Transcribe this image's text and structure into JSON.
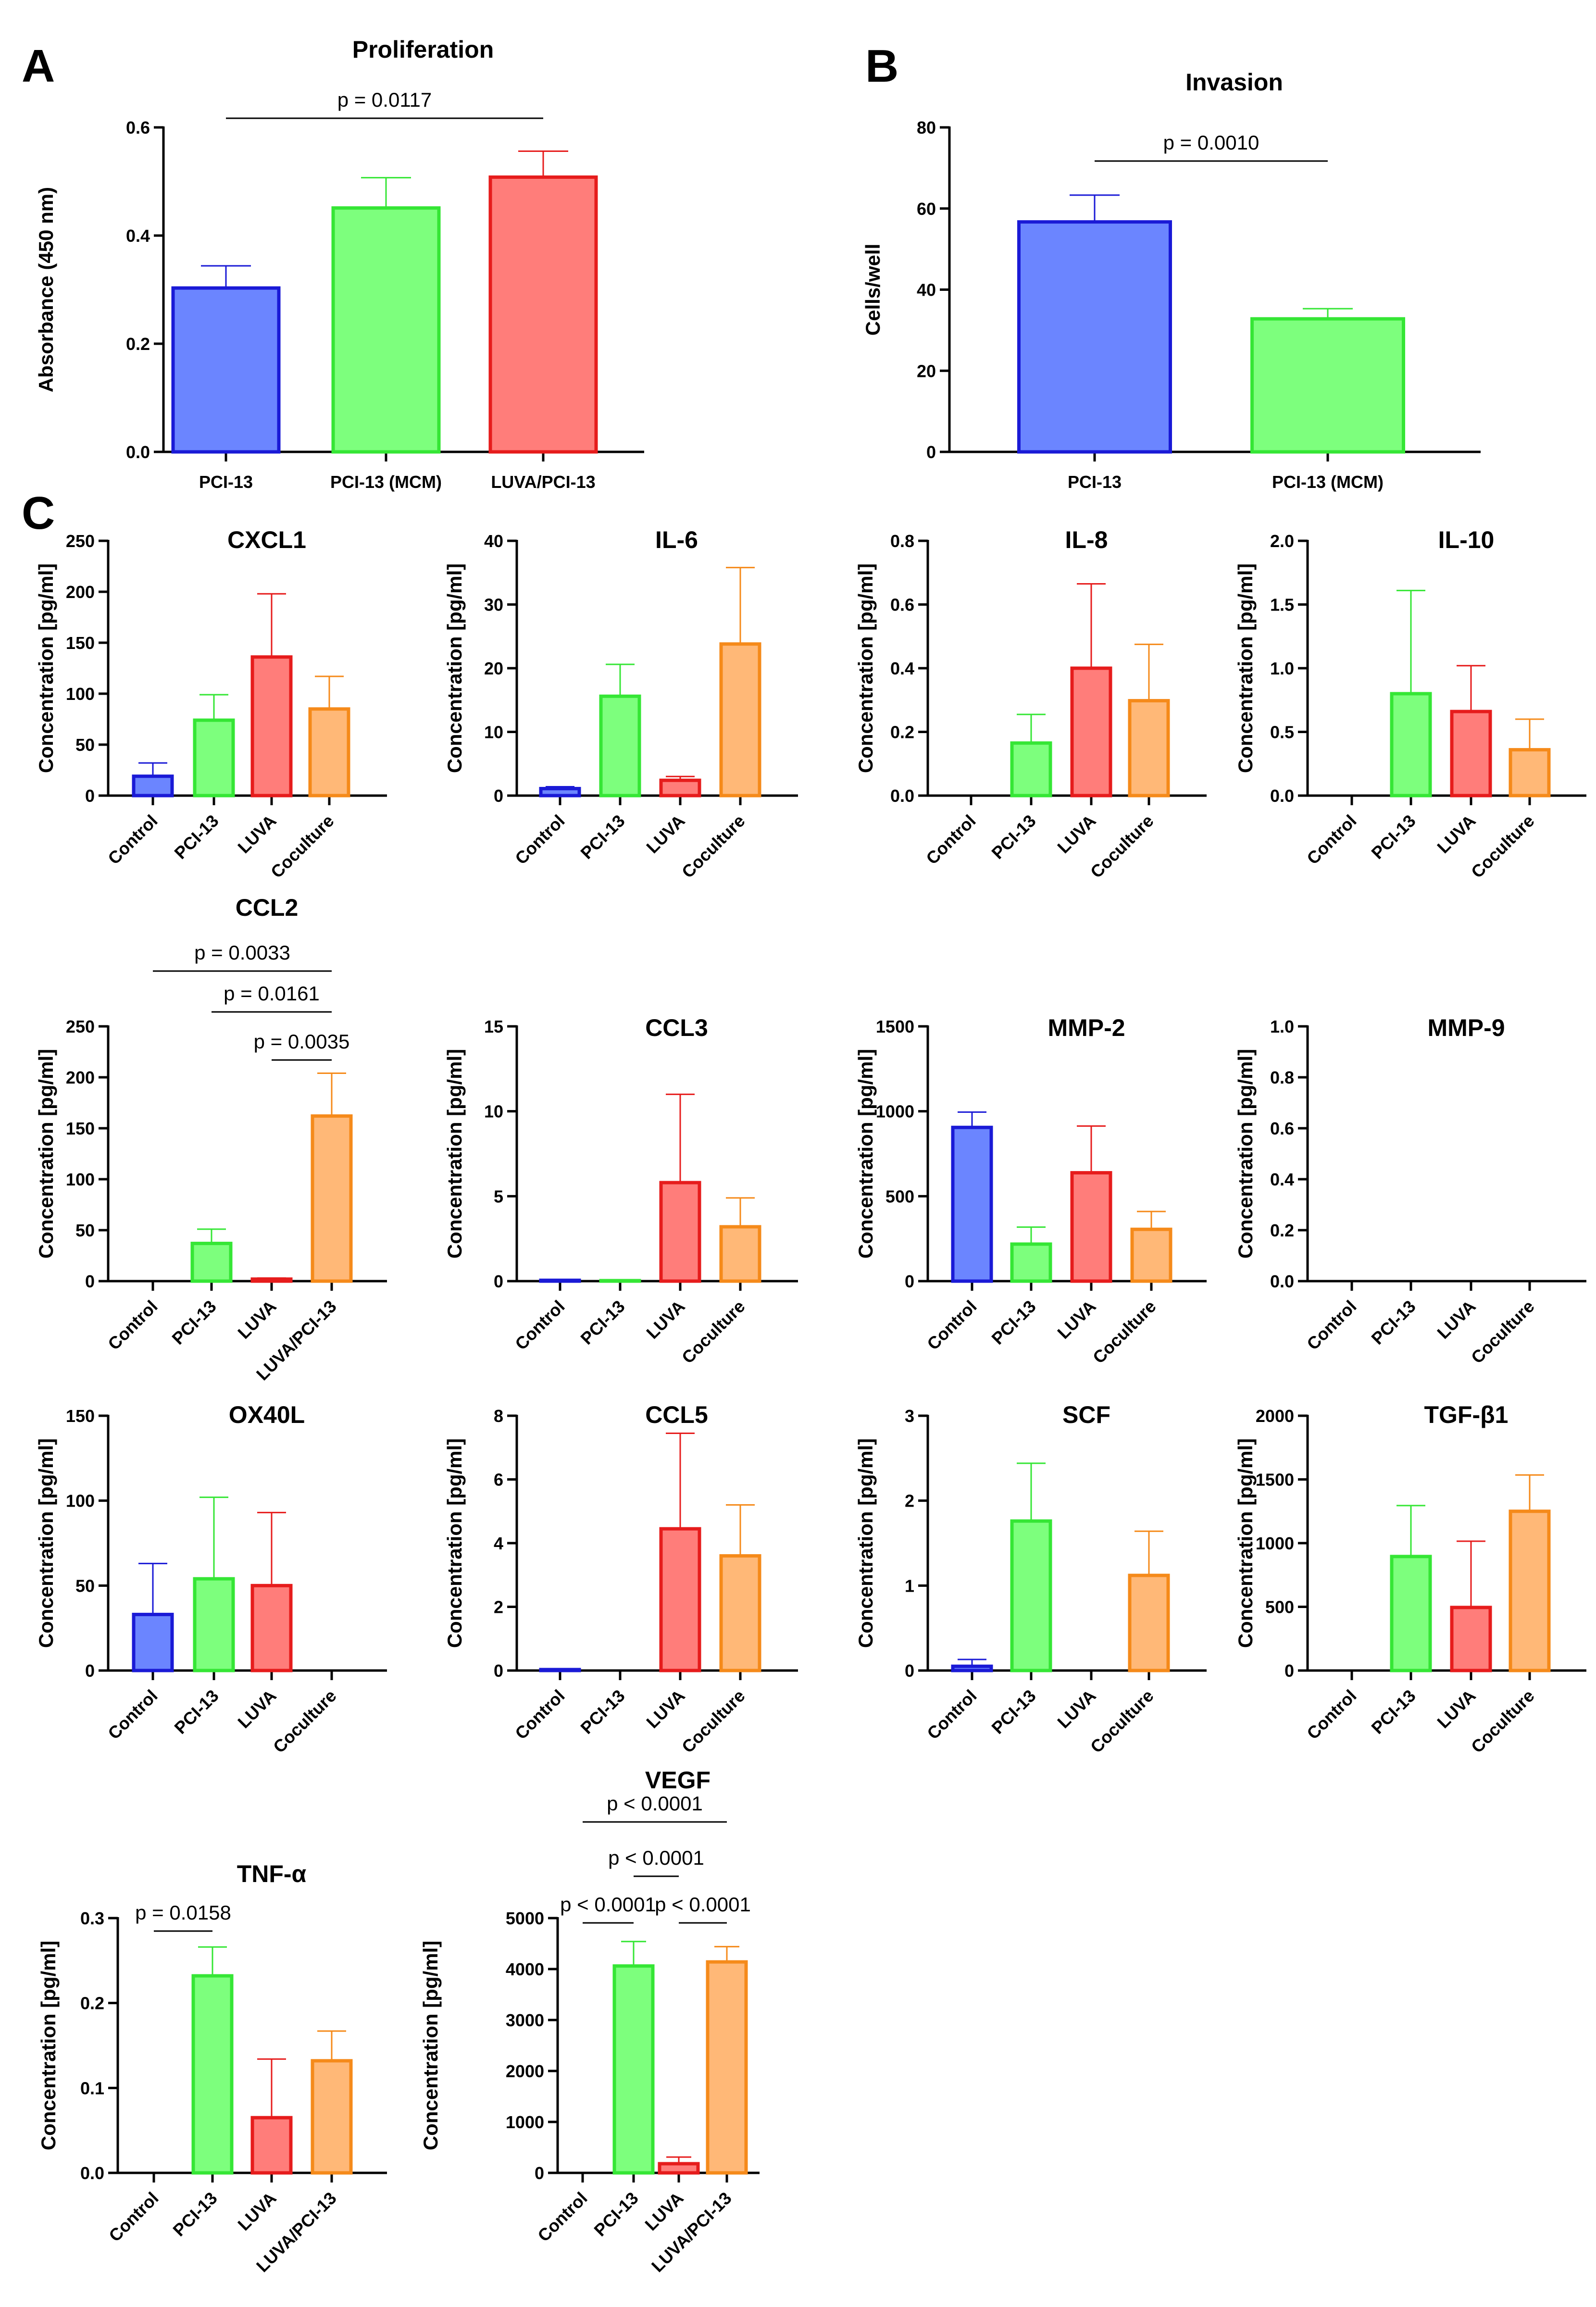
{
  "colors": {
    "blue_fill": "#6b85ff",
    "blue_edge": "#1a1ad6",
    "green_fill": "#7dff7d",
    "green_edge": "#35e635",
    "red_fill": "#ff7d7a",
    "red_edge": "#e61c1c",
    "orange_fill": "#ffb877",
    "orange_edge": "#f58a1a"
  },
  "panel_labels": [
    "A",
    "B",
    "C"
  ],
  "chart_data": [
    {
      "id": "proliferation",
      "type": "bar",
      "title": "Proliferation",
      "xlabel": "",
      "ylabel": "Absorbance (450 nm)",
      "ylim": [
        0,
        0.6
      ],
      "yticks": [
        "0.0",
        "0.2",
        "0.4",
        "0.6"
      ],
      "categories": [
        "PCI-13",
        "PCI-13 (MCM)",
        "LUVA/PCI-13"
      ],
      "values": [
        0.303,
        0.451,
        0.508
      ],
      "errors": [
        0.041,
        0.056,
        0.048
      ],
      "colors": [
        "blue",
        "green",
        "red"
      ],
      "rotate_labels": false,
      "annotations": [
        {
          "from": 0,
          "to": 2,
          "text": "p = 0.0117"
        }
      ]
    },
    {
      "id": "invasion",
      "type": "bar",
      "title": "Invasion",
      "xlabel": "",
      "ylabel": "Cells/well",
      "ylim": [
        0,
        80
      ],
      "yticks": [
        "0",
        "20",
        "40",
        "60",
        "80"
      ],
      "categories": [
        "PCI-13",
        "PCI-13 (MCM)"
      ],
      "values": [
        56.7,
        32.8
      ],
      "errors": [
        6.6,
        2.5
      ],
      "colors": [
        "blue",
        "green"
      ],
      "rotate_labels": false,
      "annotations": [
        {
          "from": 0,
          "to": 1,
          "text": "p = 0.0010"
        }
      ]
    },
    {
      "id": "cxcl1",
      "type": "bar",
      "title": "CXCL1",
      "xlabel": "",
      "ylabel": "Concentration [pg/ml]",
      "ylim": [
        0,
        250
      ],
      "yticks": [
        "0",
        "50",
        "100",
        "150",
        "200",
        "250"
      ],
      "categories": [
        "Control",
        "PCI-13",
        "LUVA",
        "Coculture"
      ],
      "values": [
        19,
        74,
        136,
        85
      ],
      "errors": [
        13,
        25,
        62,
        32
      ],
      "colors": [
        "blue",
        "green",
        "red",
        "orange"
      ],
      "rotate_labels": true,
      "annotations": []
    },
    {
      "id": "il6",
      "type": "bar",
      "title": "IL-6",
      "xlabel": "",
      "ylabel": "Concentration [pg/ml]",
      "ylim": [
        0,
        40
      ],
      "yticks": [
        "0",
        "10",
        "20",
        "30",
        "40"
      ],
      "categories": [
        "Control",
        "PCI-13",
        "LUVA",
        "Coculture"
      ],
      "values": [
        1.1,
        15.6,
        2.4,
        23.8
      ],
      "errors": [
        0.3,
        5.0,
        0.6,
        12.0
      ],
      "colors": [
        "blue",
        "green",
        "red",
        "orange"
      ],
      "rotate_labels": true,
      "annotations": []
    },
    {
      "id": "il8",
      "type": "bar",
      "title": "IL-8",
      "xlabel": "",
      "ylabel": "Concentration [pg/ml]",
      "ylim": [
        0,
        0.8
      ],
      "yticks": [
        "0.0",
        "0.2",
        "0.4",
        "0.6",
        "0.8"
      ],
      "categories": [
        "Control",
        "PCI-13",
        "LUVA",
        "Coculture"
      ],
      "values": [
        0,
        0.165,
        0.4,
        0.298
      ],
      "errors": [
        0,
        0.09,
        0.265,
        0.177
      ],
      "colors": [
        "blue",
        "green",
        "red",
        "orange"
      ],
      "rotate_labels": true,
      "annotations": []
    },
    {
      "id": "il10",
      "type": "bar",
      "title": "IL-10",
      "xlabel": "",
      "ylabel": "Concentration [pg/ml]",
      "ylim": [
        0,
        2.0
      ],
      "yticks": [
        "0.0",
        "0.5",
        "1.0",
        "1.5",
        "2.0"
      ],
      "categories": [
        "Control",
        "PCI-13",
        "LUVA",
        "Coculture"
      ],
      "values": [
        0,
        0.8,
        0.66,
        0.36
      ],
      "errors": [
        0,
        0.81,
        0.36,
        0.24
      ],
      "colors": [
        "blue",
        "green",
        "red",
        "orange"
      ],
      "rotate_labels": true,
      "annotations": []
    },
    {
      "id": "ccl2",
      "type": "bar",
      "title": "CCL2",
      "xlabel": "",
      "ylabel": "Concentration [pg/ml]",
      "ylim": [
        0,
        250
      ],
      "yticks": [
        "0",
        "50",
        "100",
        "150",
        "200",
        "250"
      ],
      "categories": [
        "Control",
        "PCI-13",
        "LUVA",
        "LUVA/PCI-13"
      ],
      "values": [
        0,
        37,
        2,
        162
      ],
      "errors": [
        0,
        14,
        1,
        42
      ],
      "colors": [
        "blue",
        "green",
        "red",
        "orange"
      ],
      "rotate_labels": true,
      "annotations": [
        {
          "from": 0,
          "to": 3,
          "text": "p = 0.0033"
        },
        {
          "from": 1,
          "to": 3,
          "text": "p = 0.0161"
        },
        {
          "from": 2,
          "to": 3,
          "text": "p = 0.0035"
        }
      ]
    },
    {
      "id": "ccl3",
      "type": "bar",
      "title": "CCL3",
      "xlabel": "",
      "ylabel": "Concentration [pg/ml]",
      "ylim": [
        0,
        15
      ],
      "yticks": [
        "0",
        "5",
        "10",
        "15"
      ],
      "categories": [
        "Control",
        "PCI-13",
        "LUVA",
        "Coculture"
      ],
      "values": [
        0.05,
        0.03,
        5.8,
        3.2
      ],
      "errors": [
        0.02,
        0.02,
        5.2,
        1.7
      ],
      "colors": [
        "blue",
        "green",
        "red",
        "orange"
      ],
      "rotate_labels": true,
      "annotations": []
    },
    {
      "id": "mmp2",
      "type": "bar",
      "title": "MMP-2",
      "xlabel": "",
      "ylabel": "Concentration [pg/ml]",
      "ylim": [
        0,
        1500
      ],
      "yticks": [
        "0",
        "500",
        "1000",
        "1500"
      ],
      "categories": [
        "Control",
        "PCI-13",
        "LUVA",
        "Coculture"
      ],
      "values": [
        905,
        218,
        638,
        305
      ],
      "errors": [
        90,
        100,
        275,
        105
      ],
      "colors": [
        "blue",
        "green",
        "red",
        "orange"
      ],
      "rotate_labels": true,
      "annotations": []
    },
    {
      "id": "mmp9",
      "type": "bar",
      "title": "MMP-9",
      "xlabel": "",
      "ylabel": "Concentration [pg/ml]",
      "ylim": [
        0,
        1.0
      ],
      "yticks": [
        "0.0",
        "0.2",
        "0.4",
        "0.6",
        "0.8",
        "1.0"
      ],
      "categories": [
        "Control",
        "PCI-13",
        "LUVA",
        "Coculture"
      ],
      "values": [
        0,
        0,
        0,
        0
      ],
      "errors": [
        0,
        0,
        0,
        0
      ],
      "colors": [
        "blue",
        "green",
        "red",
        "orange"
      ],
      "rotate_labels": true,
      "annotations": []
    },
    {
      "id": "ox40l",
      "type": "bar",
      "title": "OX40L",
      "xlabel": "",
      "ylabel": "Concentration [pg/ml]",
      "ylim": [
        0,
        150
      ],
      "yticks": [
        "0",
        "50",
        "100",
        "150"
      ],
      "categories": [
        "Control",
        "PCI-13",
        "LUVA",
        "Coculture"
      ],
      "values": [
        33,
        54,
        50,
        0
      ],
      "errors": [
        30,
        48,
        43,
        0
      ],
      "colors": [
        "blue",
        "green",
        "red",
        "orange"
      ],
      "rotate_labels": true,
      "annotations": []
    },
    {
      "id": "ccl5",
      "type": "bar",
      "title": "CCL5",
      "xlabel": "",
      "ylabel": "Concentration [pg/ml]",
      "ylim": [
        0,
        8
      ],
      "yticks": [
        "0",
        "2",
        "4",
        "6",
        "8"
      ],
      "categories": [
        "Control",
        "PCI-13",
        "LUVA",
        "Coculture"
      ],
      "values": [
        0.03,
        0,
        4.45,
        3.6
      ],
      "errors": [
        0.03,
        0,
        3.0,
        1.6
      ],
      "colors": [
        "blue",
        "green",
        "red",
        "orange"
      ],
      "rotate_labels": true,
      "annotations": []
    },
    {
      "id": "scf",
      "type": "bar",
      "title": "SCF",
      "xlabel": "",
      "ylabel": "Concentration [pg/ml]",
      "ylim": [
        0,
        3
      ],
      "yticks": [
        "0",
        "1",
        "2",
        "3"
      ],
      "categories": [
        "Control",
        "PCI-13",
        "LUVA",
        "Coculture"
      ],
      "values": [
        0.05,
        1.76,
        0,
        1.12
      ],
      "errors": [
        0.08,
        0.68,
        0,
        0.52
      ],
      "colors": [
        "blue",
        "green",
        "red",
        "orange"
      ],
      "rotate_labels": true,
      "annotations": []
    },
    {
      "id": "tgfb1",
      "type": "bar",
      "title": "TGF-β1",
      "xlabel": "",
      "ylabel": "Concentration [pg/ml]",
      "ylim": [
        0,
        2000
      ],
      "yticks": [
        "0",
        "500",
        "1000",
        "1500",
        "2000"
      ],
      "categories": [
        "Control",
        "PCI-13",
        "LUVA",
        "Coculture"
      ],
      "values": [
        0,
        895,
        495,
        1250
      ],
      "errors": [
        0,
        400,
        520,
        285
      ],
      "colors": [
        "blue",
        "green",
        "red",
        "orange"
      ],
      "rotate_labels": true,
      "annotations": []
    },
    {
      "id": "tnfa",
      "type": "bar",
      "title": "TNF-α",
      "xlabel": "",
      "ylabel": "Concentration [pg/ml]",
      "ylim": [
        0,
        0.3
      ],
      "yticks": [
        "0.0",
        "0.1",
        "0.2",
        "0.3"
      ],
      "categories": [
        "Control",
        "PCI-13",
        "LUVA",
        "LUVA/PCI-13"
      ],
      "values": [
        0,
        0.232,
        0.065,
        0.132
      ],
      "errors": [
        0,
        0.034,
        0.069,
        0.035
      ],
      "colors": [
        "blue",
        "green",
        "red",
        "orange"
      ],
      "rotate_labels": true,
      "annotations": [
        {
          "from": 0,
          "to": 1,
          "text": "p = 0.0158"
        }
      ]
    },
    {
      "id": "vegf",
      "type": "bar",
      "title": "VEGF",
      "xlabel": "",
      "ylabel": "Concentration [pg/ml]",
      "ylim": [
        0,
        5000
      ],
      "yticks": [
        "0",
        "1000",
        "2000",
        "3000",
        "4000",
        "5000"
      ],
      "categories": [
        "Control",
        "PCI-13",
        "LUVA",
        "LUVA/PCI-13"
      ],
      "values": [
        0,
        4060,
        180,
        4140
      ],
      "errors": [
        0,
        480,
        130,
        300
      ],
      "colors": [
        "blue",
        "green",
        "red",
        "orange"
      ],
      "rotate_labels": true,
      "annotations": [
        {
          "from": 0,
          "to": 3,
          "text": "p < 0.0001"
        },
        {
          "from": 1,
          "to": 2,
          "text": "p < 0.0001"
        },
        {
          "from": 0,
          "to": 1,
          "text": "p < 0.0001"
        },
        {
          "from": 2,
          "to": 3,
          "text": "p < 0.0001"
        }
      ]
    }
  ]
}
